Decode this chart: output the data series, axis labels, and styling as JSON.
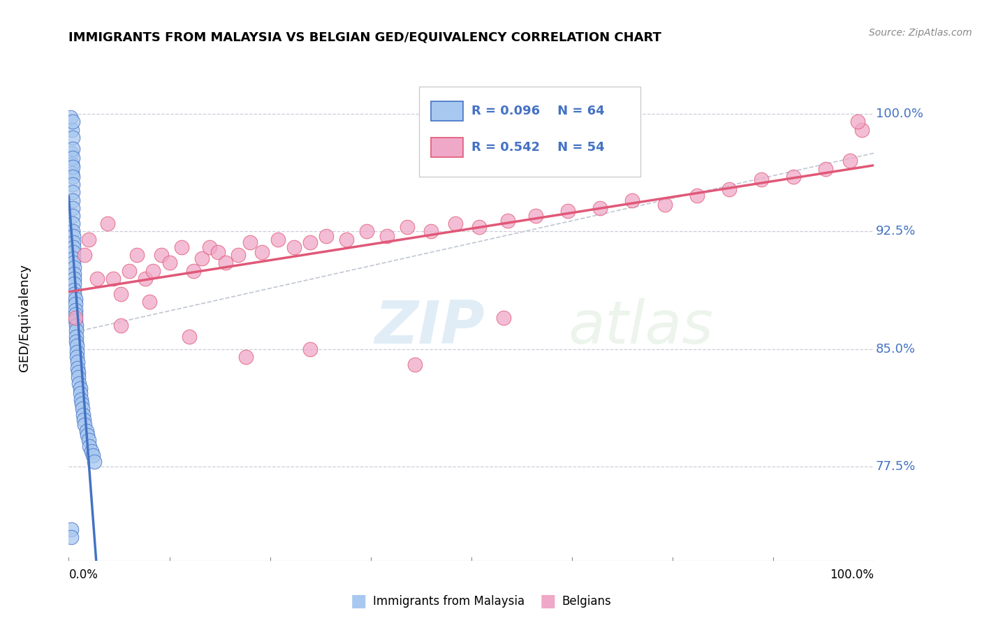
{
  "title": "IMMIGRANTS FROM MALAYSIA VS BELGIAN GED/EQUIVALENCY CORRELATION CHART",
  "source": "Source: ZipAtlas.com",
  "ylabel": "GED/Equivalency",
  "color_malaysia": "#a8c8f0",
  "color_belgian": "#f0a8c8",
  "line_color_malaysia": "#4472c4",
  "line_color_belgian": "#e05878",
  "watermark_zip": "ZIP",
  "watermark_atlas": "atlas",
  "grid_color": "#c8c8d8",
  "y_tick_vals": [
    0.775,
    0.85,
    0.925,
    1.0
  ],
  "y_tick_labels": [
    "77.5%",
    "85.0%",
    "92.5%",
    "100.0%"
  ],
  "ylim": [
    0.715,
    1.025
  ],
  "xlim": [
    0.0,
    1.0
  ],
  "legend_items": [
    {
      "r": "0.096",
      "n": "64",
      "color": "#a8c8f0",
      "edge": "#4472c4"
    },
    {
      "r": "0.542",
      "n": "54",
      "color": "#f0a8c8",
      "edge": "#e05878"
    }
  ],
  "malaysia_x": [
    0.002,
    0.003,
    0.004,
    0.004,
    0.004,
    0.005,
    0.005,
    0.005,
    0.005,
    0.005,
    0.005,
    0.005,
    0.005,
    0.005,
    0.005,
    0.005,
    0.005,
    0.005,
    0.006,
    0.006,
    0.006,
    0.006,
    0.006,
    0.006,
    0.007,
    0.007,
    0.007,
    0.007,
    0.007,
    0.007,
    0.008,
    0.008,
    0.008,
    0.008,
    0.008,
    0.009,
    0.009,
    0.009,
    0.009,
    0.01,
    0.01,
    0.01,
    0.011,
    0.011,
    0.012,
    0.012,
    0.013,
    0.014,
    0.014,
    0.015,
    0.016,
    0.017,
    0.018,
    0.019,
    0.02,
    0.022,
    0.023,
    0.025,
    0.026,
    0.028,
    0.03,
    0.032,
    0.003,
    0.003
  ],
  "malaysia_y": [
    0.998,
    0.975,
    0.968,
    0.962,
    0.99,
    0.995,
    0.985,
    0.978,
    0.972,
    0.966,
    0.96,
    0.955,
    0.95,
    0.945,
    0.94,
    0.935,
    0.93,
    0.925,
    0.922,
    0.918,
    0.915,
    0.912,
    0.908,
    0.905,
    0.902,
    0.898,
    0.895,
    0.892,
    0.888,
    0.885,
    0.882,
    0.879,
    0.875,
    0.872,
    0.868,
    0.865,
    0.862,
    0.858,
    0.855,
    0.852,
    0.848,
    0.845,
    0.842,
    0.838,
    0.835,
    0.832,
    0.828,
    0.825,
    0.822,
    0.818,
    0.815,
    0.812,
    0.808,
    0.805,
    0.802,
    0.798,
    0.795,
    0.792,
    0.788,
    0.785,
    0.782,
    0.778,
    0.735,
    0.73
  ],
  "belgian_x": [
    0.008,
    0.02,
    0.025,
    0.035,
    0.048,
    0.055,
    0.065,
    0.075,
    0.085,
    0.095,
    0.105,
    0.115,
    0.125,
    0.14,
    0.155,
    0.165,
    0.175,
    0.185,
    0.195,
    0.21,
    0.225,
    0.24,
    0.26,
    0.28,
    0.3,
    0.32,
    0.345,
    0.37,
    0.395,
    0.42,
    0.45,
    0.48,
    0.51,
    0.545,
    0.58,
    0.62,
    0.66,
    0.7,
    0.74,
    0.78,
    0.82,
    0.86,
    0.9,
    0.94,
    0.97,
    0.985,
    0.065,
    0.1,
    0.15,
    0.22,
    0.3,
    0.43,
    0.54,
    0.98
  ],
  "belgian_y": [
    0.87,
    0.91,
    0.92,
    0.895,
    0.93,
    0.895,
    0.885,
    0.9,
    0.91,
    0.895,
    0.9,
    0.91,
    0.905,
    0.915,
    0.9,
    0.908,
    0.915,
    0.912,
    0.905,
    0.91,
    0.918,
    0.912,
    0.92,
    0.915,
    0.918,
    0.922,
    0.92,
    0.925,
    0.922,
    0.928,
    0.925,
    0.93,
    0.928,
    0.932,
    0.935,
    0.938,
    0.94,
    0.945,
    0.942,
    0.948,
    0.952,
    0.958,
    0.96,
    0.965,
    0.97,
    0.99,
    0.865,
    0.88,
    0.858,
    0.845,
    0.85,
    0.84,
    0.87,
    0.995
  ]
}
